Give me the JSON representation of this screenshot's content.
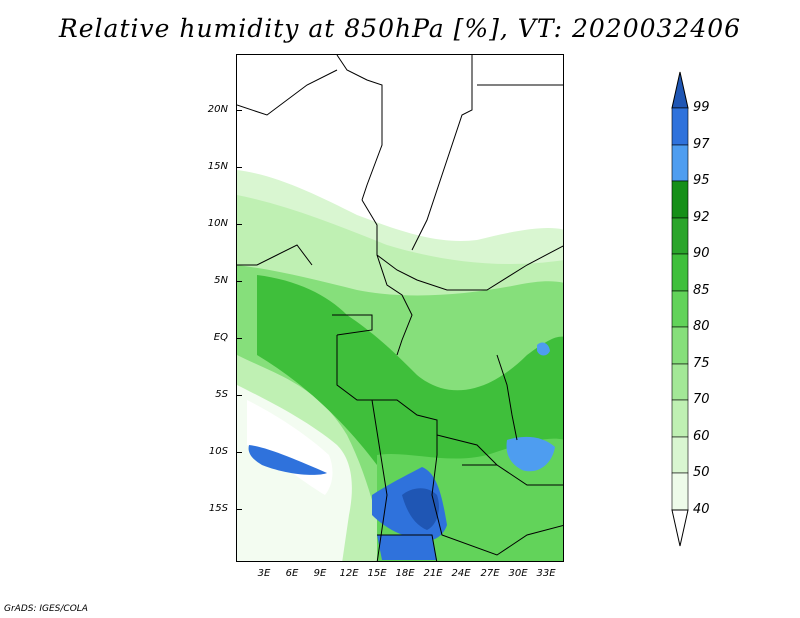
{
  "title": "Relative humidity at 850hPa [%], VT: 2020032406",
  "credit": "GrADS: IGES/COLA",
  "map": {
    "lat_labels": [
      "20N",
      "15N",
      "10N",
      "5N",
      "EQ",
      "5S",
      "10S",
      "15S"
    ],
    "lon_labels": [
      "3E",
      "6E",
      "9E",
      "12E",
      "15E",
      "18E",
      "21E",
      "24E",
      "27E",
      "30E",
      "33E"
    ]
  },
  "colorbar": {
    "levels": [
      "40",
      "50",
      "60",
      "70",
      "75",
      "80",
      "85",
      "90",
      "92",
      "95",
      "97",
      "99"
    ],
    "colors": {
      "lt40": "#ffffff",
      "40-50": "#eefbea",
      "50-60": "#d9f6d1",
      "60-70": "#bff0b3",
      "70-75": "#a3e897",
      "75-80": "#86df7b",
      "80-85": "#62d35a",
      "85-90": "#3fbf3b",
      "90-92": "#2ba52b",
      "92-95": "#168f18",
      "95-97": "#4e9df0",
      "97-99": "#2f72dc",
      "gt99": "#1f56b4"
    }
  }
}
